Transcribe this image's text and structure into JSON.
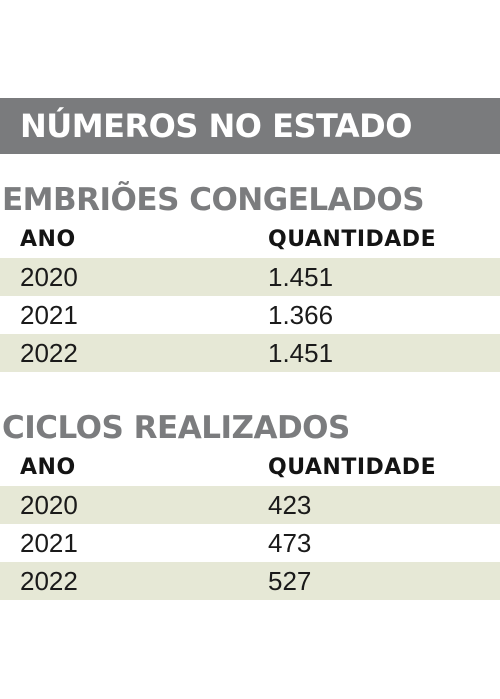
{
  "banner": {
    "title": "NÚMEROS NO ESTADO"
  },
  "sections": [
    {
      "title": "EMBRIÕES CONGELADOS",
      "headers": [
        "ANO",
        "QUANTIDADE"
      ],
      "rows": [
        {
          "year": "2020",
          "qty": "1.451"
        },
        {
          "year": "2021",
          "qty": "1.366"
        },
        {
          "year": "2022",
          "qty": "1.451"
        }
      ]
    },
    {
      "title": "CICLOS REALIZADOS",
      "headers": [
        "ANO",
        "QUANTIDADE"
      ],
      "rows": [
        {
          "year": "2020",
          "qty": "423"
        },
        {
          "year": "2021",
          "qty": "473"
        },
        {
          "year": "2022",
          "qty": "527"
        }
      ]
    }
  ],
  "colors": {
    "banner_bg": "#7a7b7d",
    "section_title": "#7b7c7e",
    "shaded_row": "#e6e8d6"
  }
}
